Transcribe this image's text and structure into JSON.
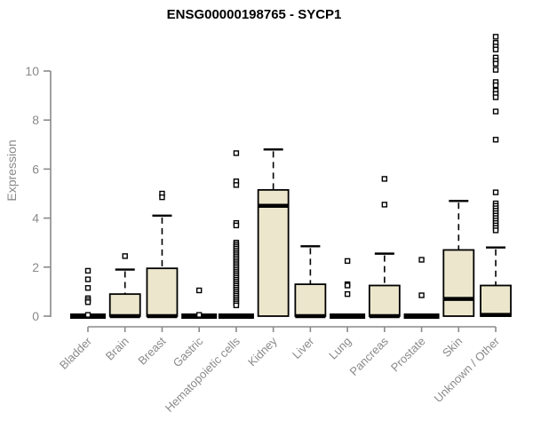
{
  "chart_data": {
    "type": "boxplot",
    "title": "ENSG00000198765 - SYCP1",
    "ylabel": "Expression",
    "xlabel": "",
    "ylim": [
      0,
      11.6
    ],
    "yticks": [
      "0",
      "2",
      "4",
      "6",
      "8",
      "10"
    ],
    "ytick_values": [
      0,
      2,
      4,
      6,
      8,
      10
    ],
    "grid": false,
    "legend": false,
    "colors": {
      "box_fill": "#ece7cc",
      "box_stroke": "#000000",
      "median": "#000000",
      "axis": "#8a8a8a",
      "title": "#000000",
      "background": "#ffffff"
    },
    "categories": [
      {
        "label": "Bladder",
        "box": {
          "q1": 0,
          "median": 0,
          "q3": 0,
          "whisker_low": 0,
          "whisker_high": 0
        },
        "outliers": [
          1.85,
          1.5,
          1.15,
          0.73,
          0.65,
          0.57,
          0.05
        ]
      },
      {
        "label": "Brain",
        "box": {
          "q1": 0,
          "median": 0,
          "q3": 0.9,
          "whisker_low": 0,
          "whisker_high": 1.9
        },
        "outliers": [
          2.45
        ]
      },
      {
        "label": "Breast",
        "box": {
          "q1": 0,
          "median": 0,
          "q3": 1.95,
          "whisker_low": 0,
          "whisker_high": 4.1
        },
        "outliers": [
          5.0,
          4.85
        ]
      },
      {
        "label": "Gastric",
        "box": {
          "q1": 0,
          "median": 0,
          "q3": 0,
          "whisker_low": 0,
          "whisker_high": 0
        },
        "outliers": [
          1.05,
          0.05
        ]
      },
      {
        "label": "Hematopoietic cells",
        "box": {
          "q1": 0,
          "median": 0,
          "q3": 0,
          "whisker_low": 0,
          "whisker_high": 0
        },
        "outliers": [
          6.65,
          5.5,
          5.35,
          3.8,
          3.7,
          3.0,
          2.92,
          2.84,
          2.76,
          2.68,
          2.6,
          2.52,
          2.44,
          2.36,
          2.28,
          2.2,
          2.12,
          2.04,
          1.96,
          1.88,
          1.8,
          1.72,
          1.64,
          1.56,
          1.48,
          1.4,
          1.32,
          1.24,
          1.16,
          1.08,
          1.0,
          0.92,
          0.84,
          0.76,
          0.68,
          0.6,
          0.52,
          0.44
        ]
      },
      {
        "label": "Kidney",
        "box": {
          "q1": 0,
          "median": 4.5,
          "q3": 5.15,
          "whisker_low": 0,
          "whisker_high": 6.8
        },
        "outliers": []
      },
      {
        "label": "Liver",
        "box": {
          "q1": 0,
          "median": 0,
          "q3": 1.3,
          "whisker_low": 0,
          "whisker_high": 2.85
        },
        "outliers": []
      },
      {
        "label": "Lung",
        "box": {
          "q1": 0,
          "median": 0,
          "q3": 0,
          "whisker_low": 0,
          "whisker_high": 0
        },
        "outliers": [
          2.25,
          1.3,
          1.25,
          0.9
        ]
      },
      {
        "label": "Pancreas",
        "box": {
          "q1": 0,
          "median": 0,
          "q3": 1.25,
          "whisker_low": 0,
          "whisker_high": 2.55
        },
        "outliers": [
          5.6,
          4.55
        ]
      },
      {
        "label": "Prostate",
        "box": {
          "q1": 0,
          "median": 0,
          "q3": 0,
          "whisker_low": 0,
          "whisker_high": 0
        },
        "outliers": [
          2.3,
          0.85
        ]
      },
      {
        "label": "Skin",
        "box": {
          "q1": 0,
          "median": 0.7,
          "q3": 2.7,
          "whisker_low": 0,
          "whisker_high": 4.7
        },
        "outliers": []
      },
      {
        "label": "Unknown / Other",
        "box": {
          "q1": 0,
          "median": 0.05,
          "q3": 1.25,
          "whisker_low": 0,
          "whisker_high": 2.8
        },
        "outliers": [
          11.4,
          11.15,
          11.0,
          10.88,
          10.55,
          10.42,
          10.3,
          10.05,
          9.55,
          9.42,
          9.2,
          9.07,
          8.93,
          8.35,
          7.2,
          5.05,
          4.6,
          4.5,
          4.4,
          4.3,
          4.2,
          4.1,
          4.0,
          3.9,
          3.8,
          3.7,
          3.6,
          3.5
        ]
      }
    ]
  }
}
